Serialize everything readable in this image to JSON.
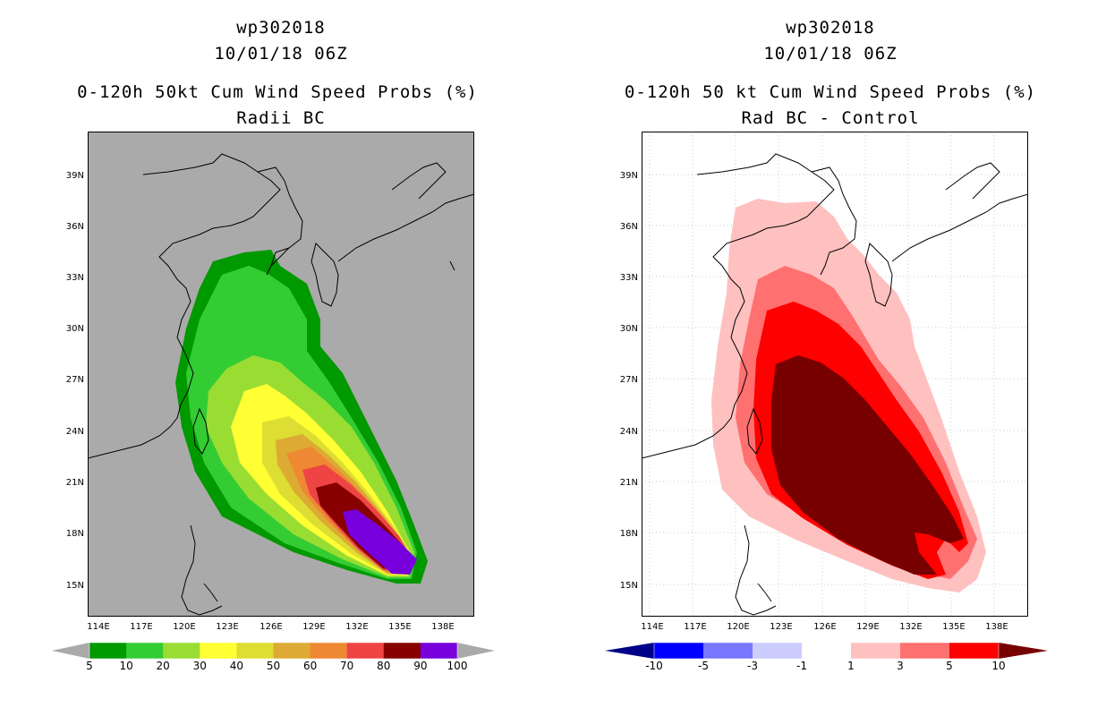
{
  "left_panel": {
    "title_line1": "wp302018",
    "title_line2": "10/01/18 06Z",
    "title_line3": "0-120h 50kt Cum Wind Speed Probs (%)",
    "title_line4": "Radii BC",
    "colorbar": {
      "labels": [
        "5",
        "10",
        "20",
        "30",
        "40",
        "50",
        "60",
        "70",
        "80",
        "90",
        "100"
      ],
      "colors": [
        "#aaaaaa",
        "#009900",
        "#33cc33",
        "#99dd33",
        "#ffff33",
        "#dddd33",
        "#ddaa33",
        "#ee8833",
        "#ee4444",
        "#880000",
        "#7700dd",
        "#aaaaaa"
      ]
    }
  },
  "right_panel": {
    "title_line1": "wp302018",
    "title_line2": "10/01/18 06Z",
    "title_line3": "0-120h 50 kt Cum Wind Speed Probs (%)",
    "title_line4": "Rad BC - Control",
    "colorbar": {
      "labels": [
        "-10",
        "-5",
        "-3",
        "-1",
        "1",
        "3",
        "5",
        "10"
      ],
      "colors": [
        "#000088",
        "#0000ff",
        "#7777ff",
        "#ccccff",
        "#ffffff",
        "#ffc0c0",
        "#ff7070",
        "#ff0000",
        "#770000"
      ]
    }
  },
  "axes": {
    "lon_ticks": [
      "114E",
      "117E",
      "120E",
      "123E",
      "126E",
      "129E",
      "132E",
      "135E",
      "138E"
    ],
    "lat_ticks": [
      "39N",
      "36N",
      "33N",
      "30N",
      "27N",
      "24N",
      "21N",
      "18N",
      "15N"
    ]
  }
}
